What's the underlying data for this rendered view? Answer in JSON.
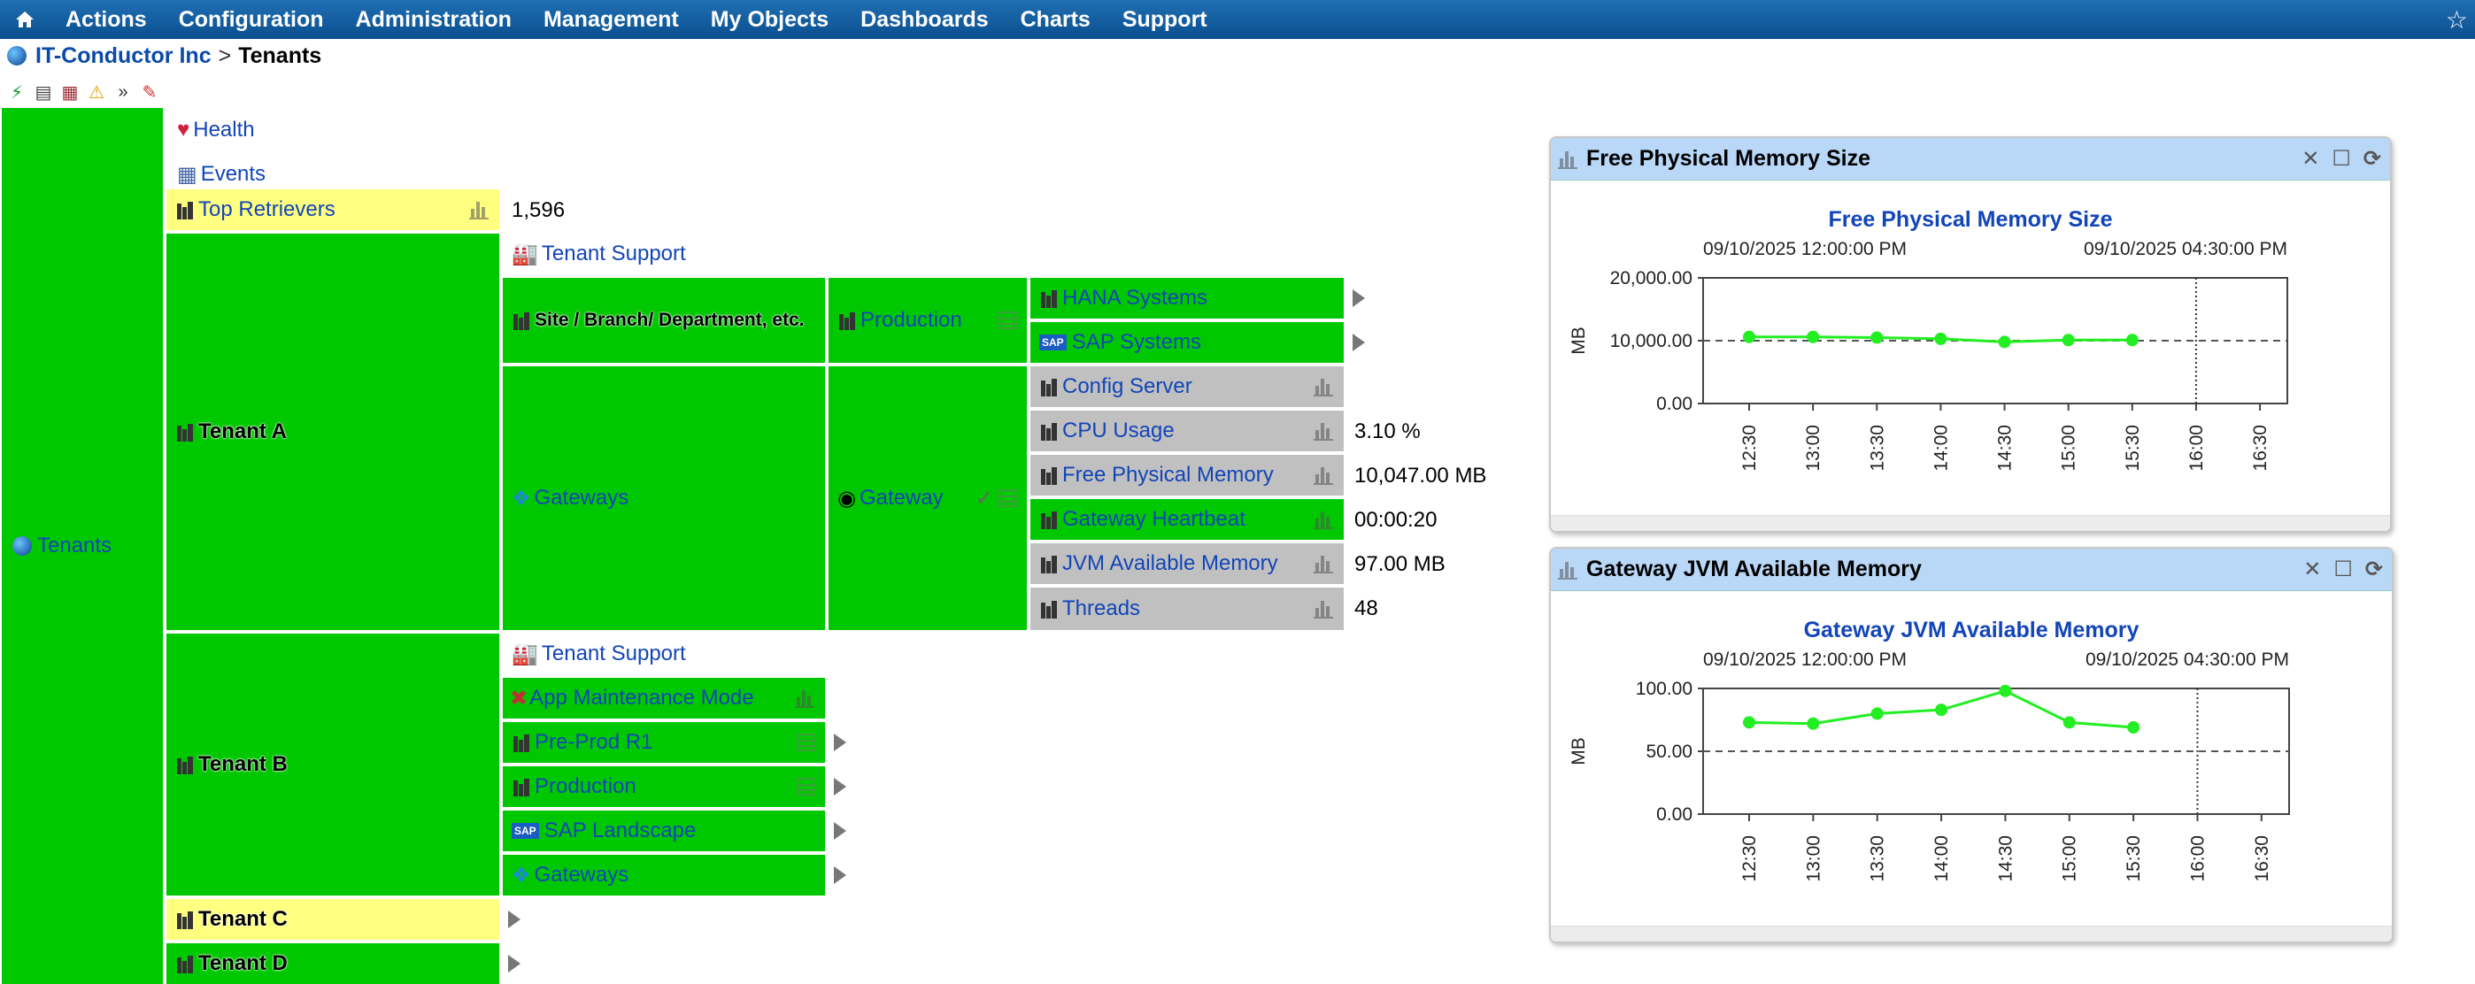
{
  "menu": {
    "items": [
      "Actions",
      "Configuration",
      "Administration",
      "Management",
      "My Objects",
      "Dashboards",
      "Charts",
      "Support"
    ]
  },
  "breadcrumb": {
    "parent": "IT-Conductor Inc",
    "separator": ">",
    "current": "Tenants"
  },
  "tree": {
    "root": "Tenants",
    "health": "Health",
    "events": "Events",
    "top_retrievers": "Top Retrievers",
    "top_retrievers_value": "1,596",
    "tenant_a": {
      "label": "Tenant A",
      "support": "Tenant Support",
      "site": "Site / Branch/ Department, etc.",
      "production": "Production",
      "hana": "HANA Systems",
      "sap": "SAP Systems",
      "gateways": "Gateways",
      "gateway": "Gateway",
      "metrics": [
        {
          "label": "Config Server",
          "value": ""
        },
        {
          "label": "CPU Usage",
          "value": "3.10 %"
        },
        {
          "label": "Free Physical Memory",
          "value": "10,047.00 MB"
        },
        {
          "label": "Gateway Heartbeat",
          "value": "00:00:20"
        },
        {
          "label": "JVM Available Memory",
          "value": "97.00 MB"
        },
        {
          "label": "Threads",
          "value": "48"
        }
      ]
    },
    "tenant_b": {
      "label": "Tenant B",
      "support": "Tenant Support",
      "app_maintenance": "App Maintenance Mode",
      "preprod": "Pre-Prod R1",
      "production": "Production",
      "sap_landscape": "SAP Landscape",
      "gateways": "Gateways"
    },
    "tenant_c": "Tenant C",
    "tenant_d": "Tenant D"
  },
  "colors": {
    "ok": "#00c800",
    "warning": "#ffff80",
    "unknown": "#c0c0c0",
    "link": "#1245b8",
    "menu": "#0b4f8f"
  },
  "chart_data": [
    {
      "type": "line",
      "panel_title": "Free Physical Memory Size",
      "title": "Free Physical Memory Size",
      "start_label": "09/10/2025 12:00:00 PM",
      "end_label": "09/10/2025 04:30:00 PM",
      "ylabel": "MB",
      "yticks": [
        "20,000.00",
        "10,000.00",
        "0.00"
      ],
      "ylim": [
        0,
        20000
      ],
      "xticks": [
        "12:30",
        "13:00",
        "13:30",
        "14:00",
        "14:30",
        "15:00",
        "15:30",
        "16:00",
        "16:30"
      ],
      "x": [
        "12:30",
        "13:00",
        "13:30",
        "14:00",
        "14:30",
        "15:00",
        "15:30"
      ],
      "values": [
        10600,
        10600,
        10500,
        10300,
        9800,
        10100,
        10100
      ],
      "threshold": 10000,
      "marker_x": "16:00"
    },
    {
      "type": "line",
      "panel_title": "Gateway JVM Available Memory",
      "title": "Gateway JVM Available Memory",
      "start_label": "09/10/2025 12:00:00 PM",
      "end_label": "09/10/2025 04:30:00 PM",
      "ylabel": "MB",
      "yticks": [
        "100.00",
        "50.00",
        "0.00"
      ],
      "ylim": [
        0,
        100
      ],
      "xticks": [
        "12:30",
        "13:00",
        "13:30",
        "14:00",
        "14:30",
        "15:00",
        "15:30",
        "16:00",
        "16:30"
      ],
      "x": [
        "12:30",
        "13:00",
        "13:30",
        "14:00",
        "14:30",
        "15:00",
        "15:30"
      ],
      "values": [
        73,
        72,
        80,
        83,
        98,
        73,
        69
      ],
      "threshold": 50,
      "marker_x": "16:00"
    }
  ]
}
